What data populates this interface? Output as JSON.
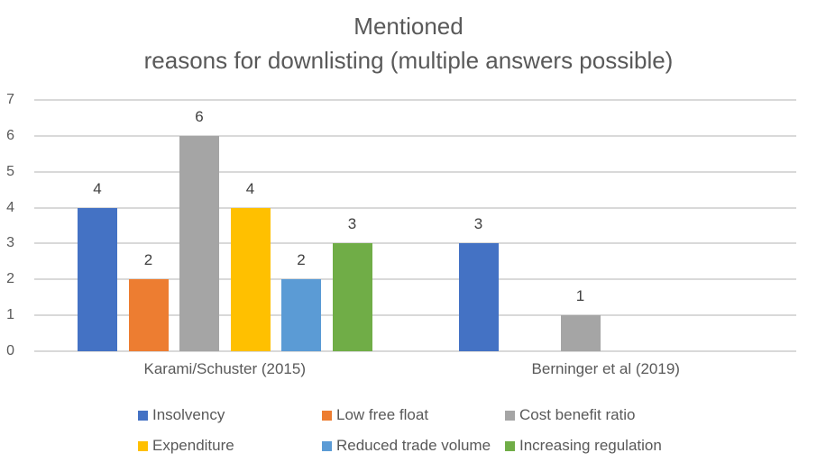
{
  "title": {
    "line1": "Mentioned",
    "line2": "reasons for downlisting (multiple answers possible)"
  },
  "chart_data": {
    "type": "bar",
    "title": "Mentioned reasons for downlisting (multiple answers possible)",
    "categories": [
      "Karami/Schuster (2015)",
      "Berninger et al (2019)"
    ],
    "series": [
      {
        "name": "Insolvency",
        "color": "#4472C4",
        "values": [
          4,
          3
        ]
      },
      {
        "name": "Low free float",
        "color": "#ED7D31",
        "values": [
          2,
          0
        ]
      },
      {
        "name": "Cost benefit ratio",
        "color": "#A5A5A5",
        "values": [
          6,
          1
        ]
      },
      {
        "name": "Expenditure",
        "color": "#FFC000",
        "values": [
          4,
          0
        ]
      },
      {
        "name": "Reduced trade volume",
        "color": "#5B9BD5",
        "values": [
          2,
          0
        ]
      },
      {
        "name": "Increasing regulation",
        "color": "#70AD47",
        "values": [
          3,
          0
        ]
      }
    ],
    "xlabel": "",
    "ylabel": "",
    "ylim": [
      0,
      7
    ],
    "yticks": [
      0,
      1,
      2,
      3,
      4,
      5,
      6,
      7
    ],
    "grid": true,
    "data_labels": true,
    "zero_values_hidden": true,
    "legend_position": "bottom",
    "colors": {
      "title_text": "#595959",
      "axis_text": "#595959",
      "data_label_text": "#404040",
      "gridline": "#D9D9D9",
      "background": "#FFFFFF"
    }
  }
}
